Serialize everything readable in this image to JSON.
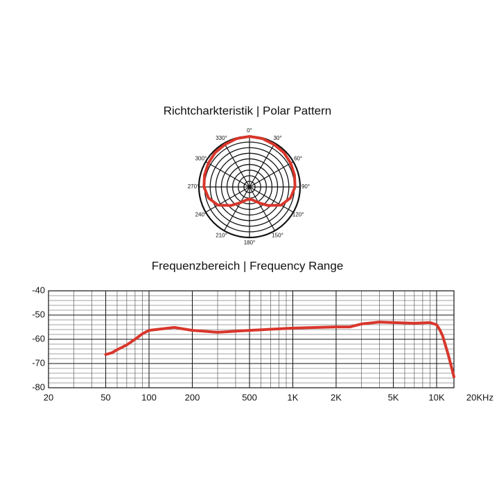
{
  "chart_data": [
    {
      "type": "polar",
      "title": "Richtcharkteristik | Polar Pattern",
      "theta": [
        0,
        15,
        30,
        45,
        60,
        75,
        90,
        105,
        120,
        135,
        150,
        165,
        180,
        195,
        210,
        225,
        240,
        255,
        270,
        285,
        300,
        315,
        330,
        345
      ],
      "r": [
        1,
        0.99,
        0.97,
        0.96,
        0.94,
        0.92,
        0.9,
        0.84,
        0.72,
        0.52,
        0.36,
        0.27,
        0.24,
        0.27,
        0.36,
        0.52,
        0.72,
        0.84,
        0.9,
        0.92,
        0.94,
        0.96,
        0.97,
        0.99
      ],
      "rlim": [
        0,
        1
      ],
      "color": "#d9362b",
      "thetaticks": [
        {
          "value": 0,
          "label": "0°"
        },
        {
          "value": 30,
          "label": "30°"
        },
        {
          "value": 60,
          "label": "60°"
        },
        {
          "value": 90,
          "label": "90°"
        },
        {
          "value": 120,
          "label": "120°"
        },
        {
          "value": 150,
          "label": "150°"
        },
        {
          "value": 180,
          "label": "180°"
        },
        {
          "value": 210,
          "label": "210°"
        },
        {
          "value": 240,
          "label": "240°"
        },
        {
          "value": 270,
          "label": "270°"
        },
        {
          "value": 300,
          "label": "300°"
        },
        {
          "value": 330,
          "label": "330°"
        }
      ]
    },
    {
      "type": "line",
      "title": "Frequenzbereich | Frequency Range",
      "xscale": "log",
      "x": [
        50,
        55,
        60,
        70,
        80,
        90,
        100,
        150,
        200,
        300,
        500,
        1000,
        2000,
        2500,
        3000,
        4000,
        5000,
        7000,
        9000,
        10000,
        10500,
        11000,
        12000,
        12500,
        13200
      ],
      "values": [
        -66.3,
        -65.6,
        -64.3,
        -62.3,
        -60,
        -57.7,
        -56.3,
        -55.1,
        -56.3,
        -57.1,
        -56.3,
        -55.4,
        -54.9,
        -54.9,
        -53.7,
        -52.9,
        -53.1,
        -53.4,
        -53.1,
        -54,
        -56,
        -58.5,
        -66,
        -70,
        -75.5
      ],
      "color": "#d9362b",
      "grid": true,
      "xlim": [
        20,
        13200
      ],
      "ylim": [
        -80,
        -40
      ],
      "xticks": [
        20,
        50,
        100,
        200,
        500,
        {
          "value": 1000,
          "label": "1K"
        },
        {
          "value": 2000,
          "label": "2K"
        },
        {
          "value": 5000,
          "label": "5K"
        },
        {
          "value": 10000,
          "label": "10K"
        },
        {
          "value": 20000,
          "label": "20KHz"
        }
      ],
      "yticks": [
        -40,
        -50,
        -60,
        -70,
        -80
      ]
    }
  ]
}
